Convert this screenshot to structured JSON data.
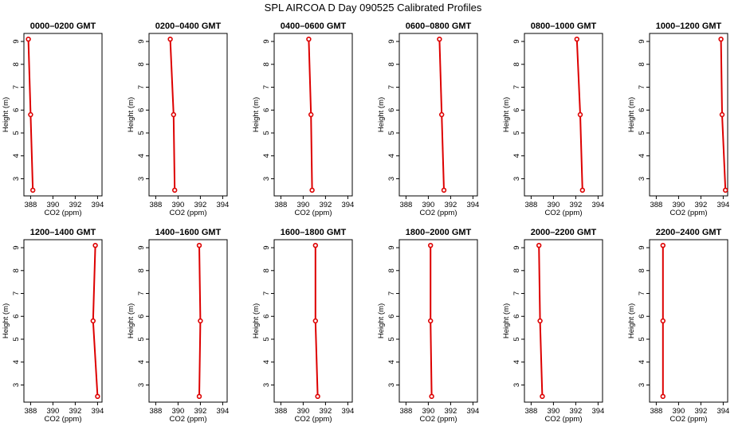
{
  "figure": {
    "title": "SPL AIRCOA D  Day 090525  Calibrated Profiles"
  },
  "chart_data": {
    "type": "line",
    "title": "SPL AIRCOA D  Day 090525  Calibrated Profiles",
    "xlabel": "CO2 (ppm)",
    "ylabel": "Height (m)",
    "xlim": [
      387.4,
      394.4
    ],
    "ylim": [
      2.25,
      9.35
    ],
    "xticks": [
      388,
      390,
      392,
      394
    ],
    "yticks": [
      3,
      4,
      5,
      6,
      7,
      8,
      9
    ],
    "grid": false,
    "colors": {
      "profile": "#dd0000"
    },
    "panels": [
      {
        "title": "0000–0200 GMT",
        "points": [
          {
            "co2": 388.2,
            "height": 2.5
          },
          {
            "co2": 388.0,
            "height": 5.8
          },
          {
            "co2": 387.8,
            "height": 9.1
          }
        ]
      },
      {
        "title": "0200–0400 GMT",
        "points": [
          {
            "co2": 389.7,
            "height": 2.5
          },
          {
            "co2": 389.6,
            "height": 5.8
          },
          {
            "co2": 389.3,
            "height": 9.1
          }
        ]
      },
      {
        "title": "0400–0600 GMT",
        "points": [
          {
            "co2": 390.8,
            "height": 2.5
          },
          {
            "co2": 390.7,
            "height": 5.8
          },
          {
            "co2": 390.5,
            "height": 9.1
          }
        ]
      },
      {
        "title": "0600–0800 GMT",
        "points": [
          {
            "co2": 391.4,
            "height": 2.5
          },
          {
            "co2": 391.2,
            "height": 5.8
          },
          {
            "co2": 391.0,
            "height": 9.1
          }
        ]
      },
      {
        "title": "0800–1000 GMT",
        "points": [
          {
            "co2": 392.6,
            "height": 2.5
          },
          {
            "co2": 392.4,
            "height": 5.8
          },
          {
            "co2": 392.1,
            "height": 9.1
          }
        ]
      },
      {
        "title": "1000–1200 GMT",
        "points": [
          {
            "co2": 394.2,
            "height": 2.5
          },
          {
            "co2": 393.9,
            "height": 5.8
          },
          {
            "co2": 393.8,
            "height": 9.1
          }
        ]
      },
      {
        "title": "1200–1400 GMT",
        "points": [
          {
            "co2": 394.0,
            "height": 2.5
          },
          {
            "co2": 393.6,
            "height": 5.8
          },
          {
            "co2": 393.8,
            "height": 9.1
          }
        ]
      },
      {
        "title": "1400–1600 GMT",
        "points": [
          {
            "co2": 391.9,
            "height": 2.5
          },
          {
            "co2": 392.0,
            "height": 5.8
          },
          {
            "co2": 391.9,
            "height": 9.1
          }
        ]
      },
      {
        "title": "1600–1800 GMT",
        "points": [
          {
            "co2": 391.3,
            "height": 2.5
          },
          {
            "co2": 391.1,
            "height": 5.8
          },
          {
            "co2": 391.1,
            "height": 9.1
          }
        ]
      },
      {
        "title": "1800–2000 GMT",
        "points": [
          {
            "co2": 390.3,
            "height": 2.5
          },
          {
            "co2": 390.2,
            "height": 5.8
          },
          {
            "co2": 390.2,
            "height": 9.1
          }
        ]
      },
      {
        "title": "2000–2200 GMT",
        "points": [
          {
            "co2": 389.0,
            "height": 2.5
          },
          {
            "co2": 388.8,
            "height": 5.8
          },
          {
            "co2": 388.7,
            "height": 9.1
          }
        ]
      },
      {
        "title": "2200–2400 GMT",
        "points": [
          {
            "co2": 388.6,
            "height": 2.5
          },
          {
            "co2": 388.6,
            "height": 5.8
          },
          {
            "co2": 388.6,
            "height": 9.1
          }
        ]
      }
    ]
  }
}
